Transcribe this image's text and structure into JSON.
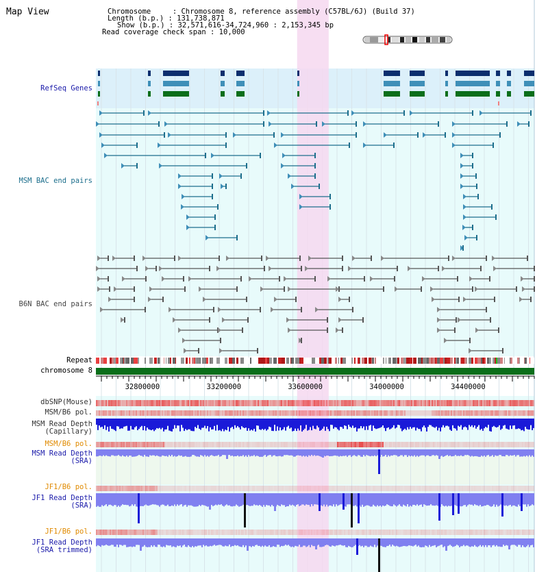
{
  "header": {
    "title": "Map View",
    "chromosome_line": "Chromosome     : Chromosome 8, reference assembly (C57BL/6J) (Build 37)",
    "length_line": "Length (b.p.) : 131,738,871",
    "show_line": "Show (b.p.) : 32,571,616-34,724,960 : 2,153,345 bp",
    "coverage_line": "Read coverage check span : 10,000"
  },
  "region": {
    "start": 32571616,
    "end": 34724960,
    "highlight_start": 33560000,
    "highlight_end": 33715000
  },
  "tracks": {
    "refseq": {
      "label": "RefSeq Genes",
      "color": "#1a1aaa"
    },
    "msm_bac": {
      "label": "MSM BAC end pairs",
      "color": "#1c6e8c"
    },
    "b6n_bac": {
      "label": "B6N BAC end pairs",
      "color": "#444444"
    },
    "repeat": {
      "label": "Repeat",
      "color": "#000000"
    },
    "chromosome": {
      "label": "chromosome 8",
      "color": "#000000"
    },
    "dbsnp": {
      "label": "dbSNP(Mouse)",
      "color": "#333333"
    },
    "msm_b6_pol_1": {
      "label": "MSM/B6 pol.",
      "color": "#333333"
    },
    "msm_depth_cap": {
      "label": "MSM Read Depth\n(Capillary)",
      "color": "#333333"
    },
    "msm_b6_pol_2": {
      "label": "MSM/B6 pol.",
      "color": "#e08a00"
    },
    "msm_depth_sra": {
      "label": "MSM Read Depth\n(SRA)",
      "color": "#1a1aaa"
    },
    "jf1_b6_pol_1": {
      "label": "JF1/B6 pol.",
      "color": "#e08a00"
    },
    "jf1_depth_sra": {
      "label": "JF1 Read Depth\n(SRA)",
      "color": "#1a1aaa"
    },
    "jf1_b6_pol_2": {
      "label": "JF1/B6 pol.",
      "color": "#e08a00"
    },
    "jf1_depth_trim": {
      "label": "JF1 Read Depth\n(SRA trimmed)",
      "color": "#1a1aaa"
    }
  },
  "axis": {
    "ticks": [
      "32800000",
      "33200000",
      "33600000",
      "34000000",
      "34400000"
    ],
    "tick_values": [
      32800000,
      33200000,
      33600000,
      34000000,
      34400000
    ]
  },
  "colors": {
    "refseq_bg": "#dcf0fa",
    "track_bg": "#e8fbfb",
    "highlight": "#f6d8f0",
    "gene_dark": "#0c2e6e",
    "gene_mid": "#3f8fb8",
    "gene_green": "#0b6e1a",
    "msm_pair": "#1c6e8c",
    "b6n_pair": "#555555",
    "chromosome_bar": "#0b6e1a",
    "snp_red": "#e83a3a",
    "depth_blue": "#1a1ad8",
    "depth_light": "#8080f0"
  }
}
